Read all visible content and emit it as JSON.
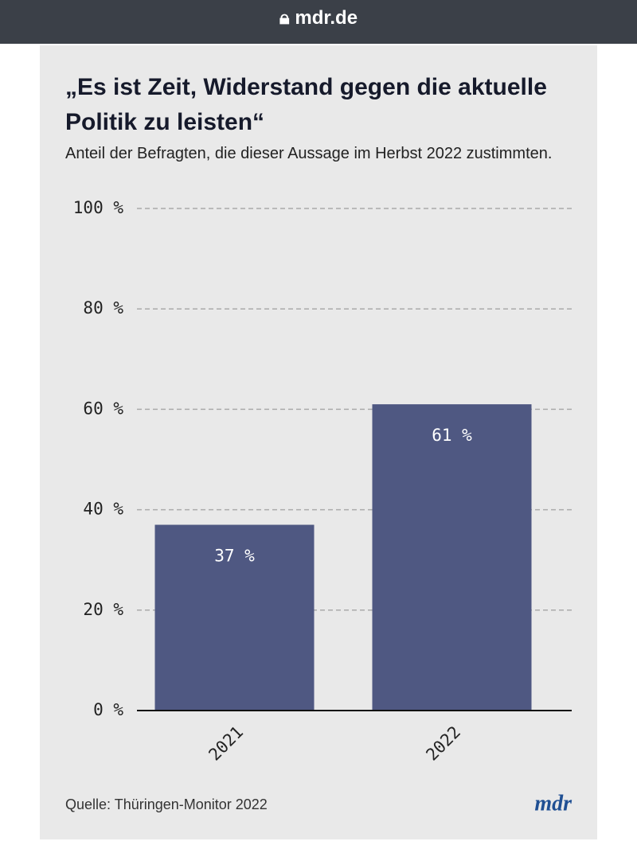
{
  "browser": {
    "url": "mdr.de"
  },
  "chart_data": {
    "type": "bar",
    "title": "„Es ist Zeit, Widerstand gegen die aktuelle Politik zu leisten“",
    "subtitle": "Anteil der Befragten, die dieser Aussage im Herbst 2022 zustimmten.",
    "categories": [
      "2021",
      "2022"
    ],
    "values": [
      37,
      61
    ],
    "value_labels": [
      "37 %",
      "61 %"
    ],
    "color": "#4f5882",
    "ylim": [
      0,
      100
    ],
    "yticks": [
      {
        "value": 0,
        "label": "0 %"
      },
      {
        "value": 20,
        "label": "20 %"
      },
      {
        "value": 40,
        "label": "40 %"
      },
      {
        "value": 60,
        "label": "60 %"
      },
      {
        "value": 80,
        "label": "80 %"
      },
      {
        "value": 100,
        "label": "100 %"
      }
    ],
    "grid": true,
    "source": "Quelle: Thüringen-Monitor 2022",
    "logo": "mdr"
  }
}
